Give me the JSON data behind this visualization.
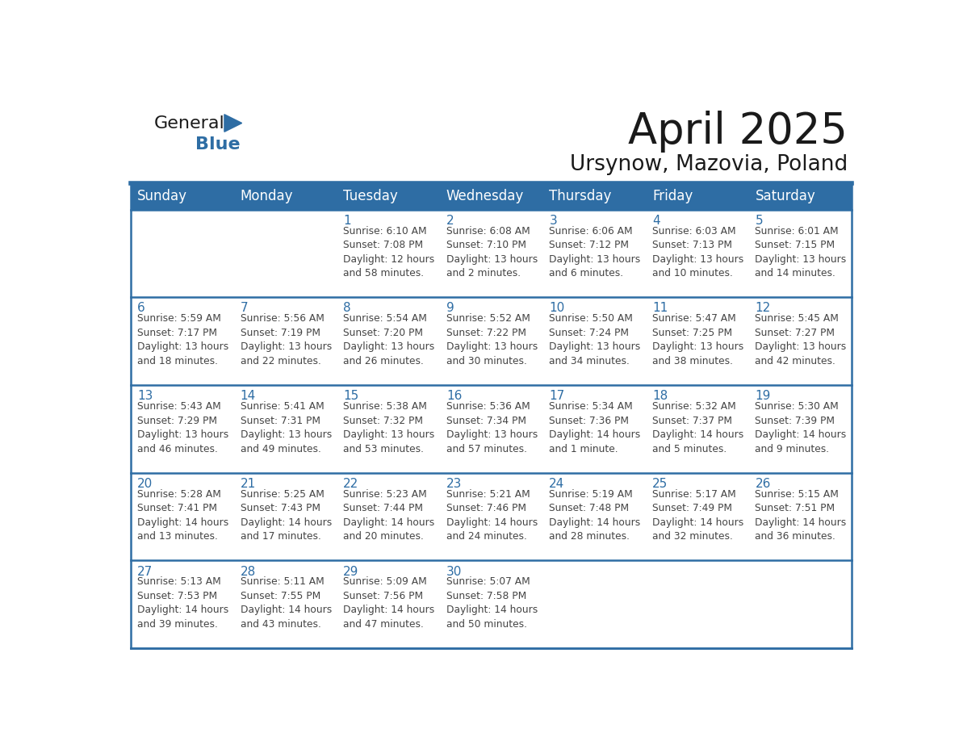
{
  "title": "April 2025",
  "subtitle": "Ursynow, Mazovia, Poland",
  "header_bg": "#2E6DA4",
  "header_text_color": "#FFFFFF",
  "cell_bg": "#FFFFFF",
  "cell_bg_alt": "#F2F2F2",
  "day_number_color": "#2E6DA4",
  "text_color": "#444444",
  "border_color": "#2E6DA4",
  "grid_line_color": "#BBBBBB",
  "days_of_week": [
    "Sunday",
    "Monday",
    "Tuesday",
    "Wednesday",
    "Thursday",
    "Friday",
    "Saturday"
  ],
  "weeks": [
    [
      {
        "day": "",
        "info": ""
      },
      {
        "day": "",
        "info": ""
      },
      {
        "day": "1",
        "info": "Sunrise: 6:10 AM\nSunset: 7:08 PM\nDaylight: 12 hours\nand 58 minutes."
      },
      {
        "day": "2",
        "info": "Sunrise: 6:08 AM\nSunset: 7:10 PM\nDaylight: 13 hours\nand 2 minutes."
      },
      {
        "day": "3",
        "info": "Sunrise: 6:06 AM\nSunset: 7:12 PM\nDaylight: 13 hours\nand 6 minutes."
      },
      {
        "day": "4",
        "info": "Sunrise: 6:03 AM\nSunset: 7:13 PM\nDaylight: 13 hours\nand 10 minutes."
      },
      {
        "day": "5",
        "info": "Sunrise: 6:01 AM\nSunset: 7:15 PM\nDaylight: 13 hours\nand 14 minutes."
      }
    ],
    [
      {
        "day": "6",
        "info": "Sunrise: 5:59 AM\nSunset: 7:17 PM\nDaylight: 13 hours\nand 18 minutes."
      },
      {
        "day": "7",
        "info": "Sunrise: 5:56 AM\nSunset: 7:19 PM\nDaylight: 13 hours\nand 22 minutes."
      },
      {
        "day": "8",
        "info": "Sunrise: 5:54 AM\nSunset: 7:20 PM\nDaylight: 13 hours\nand 26 minutes."
      },
      {
        "day": "9",
        "info": "Sunrise: 5:52 AM\nSunset: 7:22 PM\nDaylight: 13 hours\nand 30 minutes."
      },
      {
        "day": "10",
        "info": "Sunrise: 5:50 AM\nSunset: 7:24 PM\nDaylight: 13 hours\nand 34 minutes."
      },
      {
        "day": "11",
        "info": "Sunrise: 5:47 AM\nSunset: 7:25 PM\nDaylight: 13 hours\nand 38 minutes."
      },
      {
        "day": "12",
        "info": "Sunrise: 5:45 AM\nSunset: 7:27 PM\nDaylight: 13 hours\nand 42 minutes."
      }
    ],
    [
      {
        "day": "13",
        "info": "Sunrise: 5:43 AM\nSunset: 7:29 PM\nDaylight: 13 hours\nand 46 minutes."
      },
      {
        "day": "14",
        "info": "Sunrise: 5:41 AM\nSunset: 7:31 PM\nDaylight: 13 hours\nand 49 minutes."
      },
      {
        "day": "15",
        "info": "Sunrise: 5:38 AM\nSunset: 7:32 PM\nDaylight: 13 hours\nand 53 minutes."
      },
      {
        "day": "16",
        "info": "Sunrise: 5:36 AM\nSunset: 7:34 PM\nDaylight: 13 hours\nand 57 minutes."
      },
      {
        "day": "17",
        "info": "Sunrise: 5:34 AM\nSunset: 7:36 PM\nDaylight: 14 hours\nand 1 minute."
      },
      {
        "day": "18",
        "info": "Sunrise: 5:32 AM\nSunset: 7:37 PM\nDaylight: 14 hours\nand 5 minutes."
      },
      {
        "day": "19",
        "info": "Sunrise: 5:30 AM\nSunset: 7:39 PM\nDaylight: 14 hours\nand 9 minutes."
      }
    ],
    [
      {
        "day": "20",
        "info": "Sunrise: 5:28 AM\nSunset: 7:41 PM\nDaylight: 14 hours\nand 13 minutes."
      },
      {
        "day": "21",
        "info": "Sunrise: 5:25 AM\nSunset: 7:43 PM\nDaylight: 14 hours\nand 17 minutes."
      },
      {
        "day": "22",
        "info": "Sunrise: 5:23 AM\nSunset: 7:44 PM\nDaylight: 14 hours\nand 20 minutes."
      },
      {
        "day": "23",
        "info": "Sunrise: 5:21 AM\nSunset: 7:46 PM\nDaylight: 14 hours\nand 24 minutes."
      },
      {
        "day": "24",
        "info": "Sunrise: 5:19 AM\nSunset: 7:48 PM\nDaylight: 14 hours\nand 28 minutes."
      },
      {
        "day": "25",
        "info": "Sunrise: 5:17 AM\nSunset: 7:49 PM\nDaylight: 14 hours\nand 32 minutes."
      },
      {
        "day": "26",
        "info": "Sunrise: 5:15 AM\nSunset: 7:51 PM\nDaylight: 14 hours\nand 36 minutes."
      }
    ],
    [
      {
        "day": "27",
        "info": "Sunrise: 5:13 AM\nSunset: 7:53 PM\nDaylight: 14 hours\nand 39 minutes."
      },
      {
        "day": "28",
        "info": "Sunrise: 5:11 AM\nSunset: 7:55 PM\nDaylight: 14 hours\nand 43 minutes."
      },
      {
        "day": "29",
        "info": "Sunrise: 5:09 AM\nSunset: 7:56 PM\nDaylight: 14 hours\nand 47 minutes."
      },
      {
        "day": "30",
        "info": "Sunrise: 5:07 AM\nSunset: 7:58 PM\nDaylight: 14 hours\nand 50 minutes."
      },
      {
        "day": "",
        "info": ""
      },
      {
        "day": "",
        "info": ""
      },
      {
        "day": "",
        "info": ""
      }
    ]
  ],
  "logo_general_color": "#1A1A1A",
  "logo_blue_color": "#2E6DA4",
  "title_fontsize": 38,
  "subtitle_fontsize": 19,
  "header_fontsize": 12,
  "day_num_fontsize": 11,
  "info_fontsize": 8.8
}
